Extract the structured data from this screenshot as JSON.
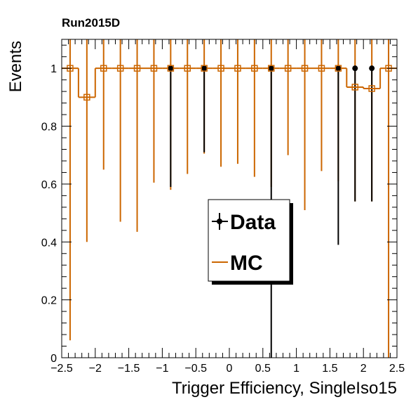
{
  "chart_data": {
    "type": "scatter",
    "run_label": "Run2015D",
    "xlabel": "Trigger Efficiency, SingleIso15",
    "ylabel": "Events",
    "xlim": [
      -2.5,
      2.5
    ],
    "ylim": [
      0,
      1.1
    ],
    "x_ticks": [
      -2.5,
      -2,
      -1.5,
      -1,
      -0.5,
      0,
      0.5,
      1,
      1.5,
      2,
      2.5
    ],
    "x_tick_labels": [
      "−2.5",
      "−2",
      "−1.5",
      "−1",
      "−0.5",
      "0",
      "0.5",
      "1",
      "1.5",
      "2",
      "2.5"
    ],
    "y_ticks": [
      0,
      0.2,
      0.4,
      0.6,
      0.8,
      1
    ],
    "y_tick_labels": [
      "0",
      "0.2",
      "0.4",
      "0.6",
      "0.8",
      "1"
    ],
    "legend": {
      "placement": "center-right",
      "entries": [
        "Data",
        "MC"
      ]
    },
    "colors": {
      "data": "#000000",
      "mc": "#cc6600"
    },
    "series": [
      {
        "name": "Data",
        "x": [
          -0.875,
          -0.375,
          0.625,
          1.625,
          1.875,
          2.125
        ],
        "y": [
          1,
          1,
          1,
          1,
          1,
          1
        ],
        "err_low": [
          0.41,
          0.29,
          1.0,
          0.61,
          0.46,
          0.46
        ],
        "err_high": [
          0,
          0,
          0,
          0,
          0,
          0
        ]
      },
      {
        "name": "MC",
        "bin_edges": [
          -2.5,
          -2.25,
          -2.0,
          -1.75,
          -1.5,
          -1.25,
          -1.0,
          -0.75,
          -0.5,
          -0.25,
          0.0,
          0.25,
          0.5,
          0.75,
          1.0,
          1.25,
          1.5,
          1.75,
          2.0,
          2.25,
          2.5
        ],
        "x": [
          -2.375,
          -2.125,
          -1.875,
          -1.625,
          -1.375,
          -1.125,
          -0.875,
          -0.625,
          -0.375,
          -0.125,
          0.125,
          0.375,
          0.625,
          0.875,
          1.125,
          1.375,
          1.625,
          1.875,
          2.125,
          2.375
        ],
        "y": [
          1.0,
          0.9,
          1.0,
          1.0,
          1.0,
          1.0,
          1.0,
          1.0,
          1.0,
          1.0,
          1.0,
          1.0,
          1.0,
          1.0,
          1.0,
          1.0,
          1.0,
          0.935,
          0.93,
          1.0
        ],
        "err_low": [
          0.94,
          0.5,
          0.35,
          0.53,
          0.565,
          0.395,
          0.42,
          0.365,
          0.295,
          0.34,
          0.33,
          0.375,
          0.41,
          0.3,
          0.49,
          0.355,
          0.39,
          0.395,
          0.39,
          1.0
        ],
        "err_high": [
          0.1,
          0.2,
          0.1,
          0.1,
          0.1,
          0.1,
          0.1,
          0.1,
          0.1,
          0.1,
          0.1,
          0.1,
          0.1,
          0.1,
          0.1,
          0.1,
          0.1,
          0.165,
          0.17,
          0.1
        ]
      }
    ]
  }
}
